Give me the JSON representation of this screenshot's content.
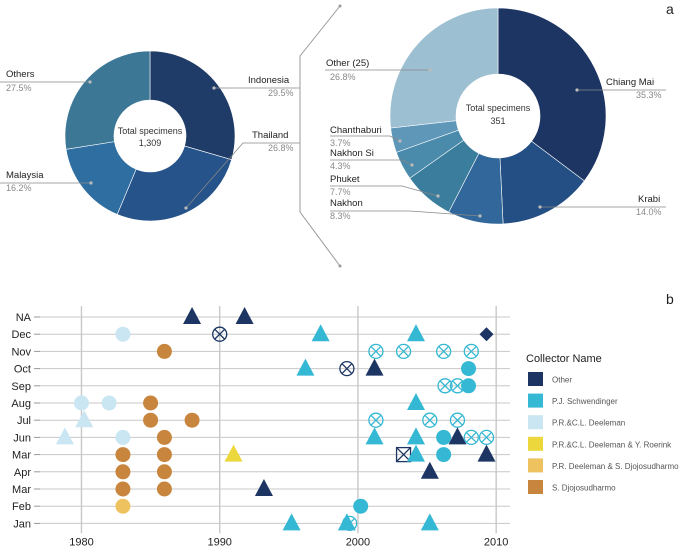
{
  "panel_labels": {
    "a": "a",
    "b": "b"
  },
  "chart_data": [
    {
      "type": "pie",
      "variant": "donut",
      "center_label": "Total specimens",
      "center_value": "1,309",
      "slices": [
        {
          "name": "Indonesia",
          "pct_label": "29.5%",
          "value": 29.5,
          "color": "#1f3b67"
        },
        {
          "name": "Thailand",
          "pct_label": "26.8%",
          "value": 26.8,
          "color": "#25538a"
        },
        {
          "name": "Malaysia",
          "pct_label": "16.2%",
          "value": 16.2,
          "color": "#2f6ea0"
        },
        {
          "name": "Others",
          "pct_label": "27.5%",
          "value": 27.5,
          "color": "#3c7895"
        }
      ]
    },
    {
      "type": "pie",
      "variant": "donut",
      "center_label": "Total specimens",
      "center_value": "351",
      "slices": [
        {
          "name": "Chiang Mai",
          "pct_label": "35.3%",
          "value": 35.3,
          "color": "#1c3563"
        },
        {
          "name": "Krabi",
          "pct_label": "14.0%",
          "value": 14.0,
          "color": "#244f85"
        },
        {
          "name": "Nakhon",
          "pct_label": "8.3%",
          "value": 8.3,
          "color": "#31679a"
        },
        {
          "name": "Phuket",
          "pct_label": "7.7%",
          "value": 7.7,
          "color": "#3a7d9c"
        },
        {
          "name": "Nakhon Si",
          "pct_label": "4.3%",
          "value": 4.3,
          "color": "#4a8aab"
        },
        {
          "name": "Chanthaburi",
          "pct_label": "3.7%",
          "value": 3.7,
          "color": "#5e97b8"
        },
        {
          "name": "Other (25)",
          "pct_label": "26.8%",
          "value": 26.8,
          "color": "#9dbfd2"
        }
      ]
    },
    {
      "type": "scatter",
      "xlim": [
        1977,
        2011
      ],
      "xticks": [
        1980,
        1990,
        2000,
        2010
      ],
      "rows": [
        "NA",
        "Dec",
        "Nov",
        "Oct",
        "Sep",
        "Aug",
        "Jul",
        "Jun",
        "Mar",
        "Apr",
        "Mar",
        "Feb",
        "Jan"
      ],
      "legend_title": "Collector Name",
      "legend": [
        {
          "name": "Other",
          "color": "#1c3563"
        },
        {
          "name": "P.J. Schwendinger",
          "color": "#35b8d3"
        },
        {
          "name": "P.R.&C.L. Deeleman",
          "color": "#c9e6f2"
        },
        {
          "name": "P.R.&C.L. Deeleman & Y. Roerink",
          "color": "#ecd83c"
        },
        {
          "name": "P.R. Deeleman & S. Djojosudharmo",
          "color": "#eec25f"
        },
        {
          "name": "S. Djojosudharmo",
          "color": "#c8853e"
        }
      ],
      "points": [
        {
          "x": 1988,
          "row": 0,
          "shape": "triangle",
          "color": "#1c3563"
        },
        {
          "x": 1991.8,
          "row": 0,
          "shape": "triangle",
          "color": "#1c3563"
        },
        {
          "x": 1983,
          "row": 1,
          "shape": "circle",
          "color": "#c9e6f2"
        },
        {
          "x": 1990,
          "row": 1,
          "shape": "circle-x",
          "color": "#1c3563"
        },
        {
          "x": 1997.3,
          "row": 1,
          "shape": "triangle",
          "color": "#35b8d3"
        },
        {
          "x": 2004.2,
          "row": 1,
          "shape": "triangle",
          "color": "#35b8d3"
        },
        {
          "x": 2009.3,
          "row": 1,
          "shape": "diamond",
          "color": "#1c3563"
        },
        {
          "x": 1986,
          "row": 2,
          "shape": "circle",
          "color": "#c8853e"
        },
        {
          "x": 2001.3,
          "row": 2,
          "shape": "circle-x",
          "color": "#35b8d3"
        },
        {
          "x": 2003.3,
          "row": 2,
          "shape": "circle-x",
          "color": "#35b8d3"
        },
        {
          "x": 2006.2,
          "row": 2,
          "shape": "circle-x",
          "color": "#35b8d3"
        },
        {
          "x": 2008.2,
          "row": 2,
          "shape": "circle-x",
          "color": "#35b8d3"
        },
        {
          "x": 1996.2,
          "row": 3,
          "shape": "triangle",
          "color": "#35b8d3"
        },
        {
          "x": 1999.2,
          "row": 3,
          "shape": "circle-x",
          "color": "#1c3563"
        },
        {
          "x": 2001.2,
          "row": 3,
          "shape": "triangle",
          "color": "#1c3563"
        },
        {
          "x": 2008,
          "row": 3,
          "shape": "circle",
          "color": "#35b8d3"
        },
        {
          "x": 2006.3,
          "row": 4,
          "shape": "circle-x",
          "color": "#35b8d3"
        },
        {
          "x": 2007.2,
          "row": 4,
          "shape": "circle-x",
          "color": "#35b8d3"
        },
        {
          "x": 2008,
          "row": 4,
          "shape": "circle",
          "color": "#35b8d3"
        },
        {
          "x": 1980,
          "row": 5,
          "shape": "circle",
          "color": "#c9e6f2"
        },
        {
          "x": 1982,
          "row": 5,
          "shape": "circle",
          "color": "#c9e6f2"
        },
        {
          "x": 1985,
          "row": 5,
          "shape": "circle",
          "color": "#c8853e"
        },
        {
          "x": 2004.2,
          "row": 5,
          "shape": "triangle",
          "color": "#35b8d3"
        },
        {
          "x": 1980.2,
          "row": 6,
          "shape": "triangle",
          "color": "#c9e6f2"
        },
        {
          "x": 1985,
          "row": 6,
          "shape": "circle",
          "color": "#c8853e"
        },
        {
          "x": 1988,
          "row": 6,
          "shape": "circle",
          "color": "#c8853e"
        },
        {
          "x": 2001.3,
          "row": 6,
          "shape": "circle-x",
          "color": "#35b8d3"
        },
        {
          "x": 2005.2,
          "row": 6,
          "shape": "circle-x",
          "color": "#35b8d3"
        },
        {
          "x": 2007.2,
          "row": 6,
          "shape": "circle-x",
          "color": "#35b8d3"
        },
        {
          "x": 1978.8,
          "row": 7,
          "shape": "triangle",
          "color": "#c9e6f2"
        },
        {
          "x": 1983,
          "row": 7,
          "shape": "circle",
          "color": "#c9e6f2"
        },
        {
          "x": 1986,
          "row": 7,
          "shape": "circle",
          "color": "#c8853e"
        },
        {
          "x": 2001.2,
          "row": 7,
          "shape": "triangle",
          "color": "#35b8d3"
        },
        {
          "x": 2004.2,
          "row": 7,
          "shape": "triangle",
          "color": "#35b8d3"
        },
        {
          "x": 2006.2,
          "row": 7,
          "shape": "circle",
          "color": "#35b8d3"
        },
        {
          "x": 2007.2,
          "row": 7,
          "shape": "triangle",
          "color": "#1c3563"
        },
        {
          "x": 2008.2,
          "row": 7,
          "shape": "circle-x",
          "color": "#35b8d3"
        },
        {
          "x": 2009.3,
          "row": 7,
          "shape": "circle-x",
          "color": "#35b8d3"
        },
        {
          "x": 1983,
          "row": 8,
          "shape": "circle",
          "color": "#c8853e"
        },
        {
          "x": 1986,
          "row": 8,
          "shape": "circle",
          "color": "#c8853e"
        },
        {
          "x": 1991,
          "row": 8,
          "shape": "triangle",
          "color": "#ecd83c"
        },
        {
          "x": 2003.3,
          "row": 8,
          "shape": "square-x",
          "color": "#1c3563"
        },
        {
          "x": 2004.2,
          "row": 8,
          "shape": "triangle",
          "color": "#35b8d3"
        },
        {
          "x": 2006.2,
          "row": 8,
          "shape": "circle",
          "color": "#35b8d3"
        },
        {
          "x": 2009.3,
          "row": 8,
          "shape": "triangle",
          "color": "#1c3563"
        },
        {
          "x": 1983,
          "row": 9,
          "shape": "circle",
          "color": "#c8853e"
        },
        {
          "x": 1986,
          "row": 9,
          "shape": "circle",
          "color": "#c8853e"
        },
        {
          "x": 2005.2,
          "row": 9,
          "shape": "triangle",
          "color": "#1c3563"
        },
        {
          "x": 1983,
          "row": 10,
          "shape": "circle",
          "color": "#c8853e"
        },
        {
          "x": 1986,
          "row": 10,
          "shape": "circle",
          "color": "#c8853e"
        },
        {
          "x": 1993.2,
          "row": 10,
          "shape": "triangle",
          "color": "#1c3563"
        },
        {
          "x": 1983,
          "row": 11,
          "shape": "circle",
          "color": "#eec25f"
        },
        {
          "x": 2000.2,
          "row": 11,
          "shape": "circle",
          "color": "#35b8d3"
        },
        {
          "x": 1995.2,
          "row": 12,
          "shape": "triangle",
          "color": "#35b8d3"
        },
        {
          "x": 1999.2,
          "row": 12,
          "shape": "triangle",
          "color": "#35b8d3"
        },
        {
          "x": 1999.4,
          "row": 12,
          "shape": "circle-x",
          "color": "#35b8d3"
        },
        {
          "x": 2005.2,
          "row": 12,
          "shape": "triangle",
          "color": "#35b8d3"
        }
      ]
    }
  ]
}
